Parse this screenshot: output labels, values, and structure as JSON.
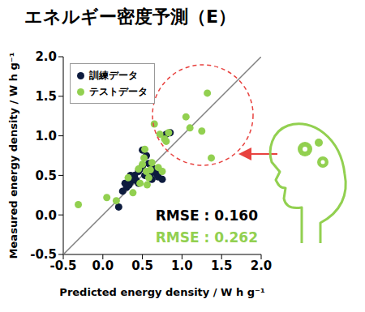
{
  "chart_data": {
    "type": "scatter",
    "title": "エネルギー密度予測（E）",
    "x_label": "Predicted energy density / W h g⁻¹",
    "y_label": "Measured energy density / W h g⁻¹",
    "xlim": [
      -0.5,
      2.0
    ],
    "ylim": [
      -0.5,
      2.0
    ],
    "xticks": [
      -0.5,
      {
        "value": 0,
        "label": "0.0"
      },
      0.5,
      {
        "value": 1,
        "label": "1.0"
      },
      1.5,
      {
        "value": 2,
        "label": "2.0"
      }
    ],
    "yticks": [
      -0.5,
      {
        "value": 0,
        "label": "0.0"
      },
      0.5,
      {
        "value": 1,
        "label": "1.0"
      },
      1.5,
      {
        "value": 2,
        "label": "2.0"
      }
    ],
    "grid": false,
    "legend": "upper left",
    "series": [
      {
        "type": "line",
        "color": "#808080",
        "line_style": "solid",
        "marker": "none",
        "x": [
          -0.5,
          2.0
        ],
        "values": [
          -0.5,
          2.0
        ]
      },
      {
        "name": "訓練データ",
        "type": "scatter",
        "color": "#0d1b3e",
        "marker": "circle",
        "x": [
          0.2,
          0.25,
          0.3,
          0.33,
          0.35,
          0.38,
          0.4,
          0.42,
          0.45,
          0.47,
          0.5,
          0.5,
          0.53,
          0.55,
          0.58,
          0.6,
          0.62,
          0.65,
          0.68,
          0.7,
          0.72,
          0.75,
          0.8,
          0.85,
          0.28,
          0.35,
          0.45
        ],
        "values": [
          0.1,
          0.3,
          0.35,
          0.38,
          0.42,
          0.45,
          0.5,
          0.44,
          0.55,
          0.58,
          0.62,
          0.82,
          0.5,
          0.75,
          0.65,
          0.52,
          0.45,
          0.58,
          0.52,
          0.48,
          0.55,
          0.45,
          1.02,
          1.04,
          0.4,
          0.5,
          0.4
        ]
      },
      {
        "name": "テストデータ",
        "type": "scatter",
        "color": "#92d050",
        "marker": "circle",
        "x": [
          -0.31,
          0.05,
          0.17,
          0.32,
          0.38,
          0.45,
          0.5,
          0.52,
          0.55,
          0.56,
          0.6,
          0.62,
          0.47,
          0.58,
          0.65,
          0.7,
          0.72,
          0.78,
          0.8,
          0.75,
          0.83,
          0.53,
          1.05,
          1.1,
          1.25,
          1.32,
          1.37
        ],
        "values": [
          0.13,
          0.22,
          0.18,
          0.47,
          0.28,
          0.58,
          0.64,
          0.72,
          0.55,
          0.38,
          0.57,
          0.66,
          0.4,
          0.47,
          1.15,
          0.6,
          1.02,
          0.96,
          0.93,
          0.55,
          1.04,
          0.83,
          1.24,
          1.1,
          1.06,
          1.54,
          0.72
        ]
      }
    ],
    "annotations": [
      {
        "text": "RMSE : 0.160",
        "color": "#000000"
      },
      {
        "text": "RMSE : 0.262",
        "color": "#92d050"
      }
    ]
  }
}
